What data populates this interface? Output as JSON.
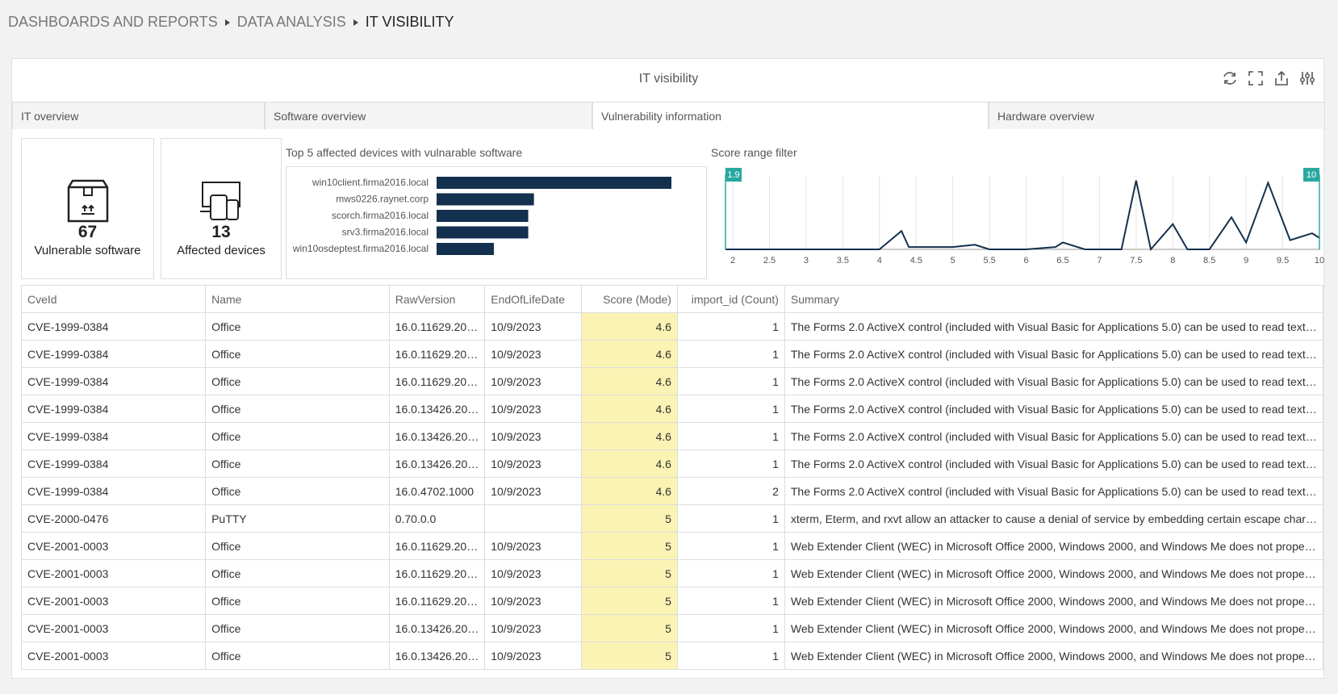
{
  "breadcrumb": [
    "DASHBOARDS AND REPORTS",
    "DATA ANALYSIS",
    "IT VISIBILITY"
  ],
  "panel": {
    "title": "IT visibility",
    "tabs": [
      "IT overview",
      "Software overview",
      "Vulnerability information",
      "Hardware overview"
    ],
    "active_tab": 2
  },
  "kpis": [
    {
      "value": "67",
      "label": "Vulnerable software"
    },
    {
      "value": "13",
      "label": "Affected devices"
    }
  ],
  "chart_data": [
    {
      "type": "bar",
      "title": "Top 5 affected devices with vulnarable software",
      "categories": [
        "win10client.firma2016.local",
        "mws0226.raynet.corp",
        "scorch.firma2016.local",
        "srv3.firma2016.local",
        "win10osdeptest.firma2016.local"
      ],
      "values": [
        41,
        17,
        16,
        16,
        10
      ],
      "xlim": [
        0,
        41
      ],
      "color": "#14304f"
    },
    {
      "type": "line",
      "title": "Score range filter",
      "x": [
        1.9,
        2,
        2.5,
        3,
        3.5,
        4,
        4.3,
        4.4,
        5,
        5.3,
        5.5,
        6,
        6.4,
        6.5,
        6.8,
        7,
        7.3,
        7.5,
        7.7,
        8,
        8.2,
        8.5,
        8.8,
        9,
        9.3,
        9.6,
        9.9,
        10
      ],
      "values": [
        0,
        0,
        0,
        0,
        0,
        0,
        8,
        1,
        1,
        2,
        0,
        0,
        1,
        3,
        0,
        0,
        0,
        30,
        0,
        11,
        0,
        0,
        14,
        3,
        29,
        4,
        7,
        5
      ],
      "xlim": [
        1.9,
        10
      ],
      "ylim": [
        0,
        32
      ],
      "xticks": [
        2,
        2.5,
        3,
        3.5,
        4,
        4.5,
        5,
        5.5,
        6,
        6.5,
        7,
        7.5,
        8,
        8.5,
        9,
        9.5,
        10
      ],
      "range": [
        1.9,
        10
      ],
      "color": "#14304f",
      "handle_color": "#2aa8a0",
      "grid": true
    }
  ],
  "table": {
    "columns": [
      "CveId",
      "Name",
      "RawVersion",
      "EndOfLifeDate",
      "Score (Mode)",
      "import_id (Count)",
      "Summary"
    ],
    "highlight_column": 4,
    "rows": [
      [
        "CVE-1999-0384",
        "Office",
        "16.0.11629.20…",
        "10/9/2023",
        "4.6",
        "1",
        "The Forms 2.0 ActiveX control (included with Visual Basic for Applications 5.0) can be used to read text…"
      ],
      [
        "CVE-1999-0384",
        "Office",
        "16.0.11629.20…",
        "10/9/2023",
        "4.6",
        "1",
        "The Forms 2.0 ActiveX control (included with Visual Basic for Applications 5.0) can be used to read text…"
      ],
      [
        "CVE-1999-0384",
        "Office",
        "16.0.11629.20…",
        "10/9/2023",
        "4.6",
        "1",
        "The Forms 2.0 ActiveX control (included with Visual Basic for Applications 5.0) can be used to read text…"
      ],
      [
        "CVE-1999-0384",
        "Office",
        "16.0.13426.20…",
        "10/9/2023",
        "4.6",
        "1",
        "The Forms 2.0 ActiveX control (included with Visual Basic for Applications 5.0) can be used to read text…"
      ],
      [
        "CVE-1999-0384",
        "Office",
        "16.0.13426.20…",
        "10/9/2023",
        "4.6",
        "1",
        "The Forms 2.0 ActiveX control (included with Visual Basic for Applications 5.0) can be used to read text…"
      ],
      [
        "CVE-1999-0384",
        "Office",
        "16.0.13426.20…",
        "10/9/2023",
        "4.6",
        "1",
        "The Forms 2.0 ActiveX control (included with Visual Basic for Applications 5.0) can be used to read text…"
      ],
      [
        "CVE-1999-0384",
        "Office",
        "16.0.4702.1000",
        "10/9/2023",
        "4.6",
        "2",
        "The Forms 2.0 ActiveX control (included with Visual Basic for Applications 5.0) can be used to read text…"
      ],
      [
        "CVE-2000-0476",
        "PuTTY",
        "0.70.0.0",
        null,
        "5",
        "1",
        "xterm, Eterm, and rxvt allow an attacker to cause a denial of service by embedding certain escape char…"
      ],
      [
        "CVE-2001-0003",
        "Office",
        "16.0.11629.20…",
        "10/9/2023",
        "5",
        "1",
        "Web Extender Client (WEC) in Microsoft Office 2000, Windows 2000, and Windows Me does not prope…"
      ],
      [
        "CVE-2001-0003",
        "Office",
        "16.0.11629.20…",
        "10/9/2023",
        "5",
        "1",
        "Web Extender Client (WEC) in Microsoft Office 2000, Windows 2000, and Windows Me does not prope…"
      ],
      [
        "CVE-2001-0003",
        "Office",
        "16.0.11629.20…",
        "10/9/2023",
        "5",
        "1",
        "Web Extender Client (WEC) in Microsoft Office 2000, Windows 2000, and Windows Me does not prope…"
      ],
      [
        "CVE-2001-0003",
        "Office",
        "16.0.13426.20…",
        "10/9/2023",
        "5",
        "1",
        "Web Extender Client (WEC) in Microsoft Office 2000, Windows 2000, and Windows Me does not prope…"
      ],
      [
        "CVE-2001-0003",
        "Office",
        "16.0.13426.20…",
        "10/9/2023",
        "5",
        "1",
        "Web Extender Client (WEC) in Microsoft Office 2000, Windows 2000, and Windows Me does not prope…"
      ]
    ]
  }
}
